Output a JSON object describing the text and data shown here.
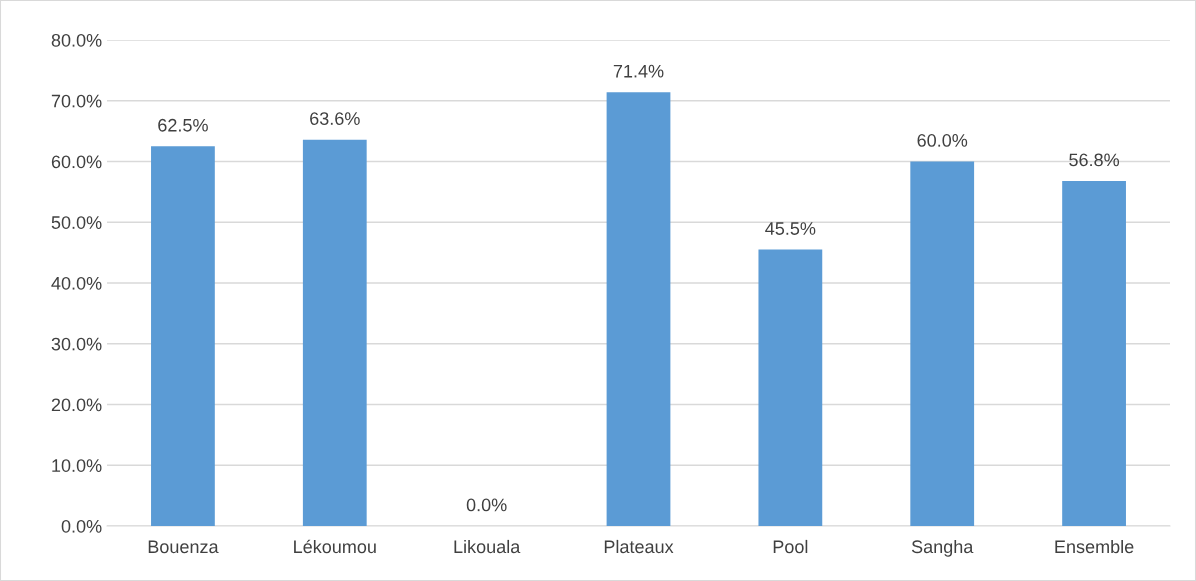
{
  "chart_data": {
    "type": "bar",
    "categories": [
      "Bouenza",
      "Lékoumou",
      "Likouala",
      "Plateaux",
      "Pool",
      "Sangha",
      "Ensemble"
    ],
    "values": [
      62.5,
      63.6,
      0.0,
      71.4,
      45.5,
      60.0,
      56.8
    ],
    "value_labels": [
      "62.5%",
      "63.6%",
      "0.0%",
      "71.4%",
      "45.5%",
      "60.0%",
      "56.8%"
    ],
    "color": "#5b9bd5",
    "ylim": [
      0,
      80
    ],
    "yticks": [
      {
        "value": 0,
        "label": "0.0%"
      },
      {
        "value": 10,
        "label": "10.0%"
      },
      {
        "value": 20,
        "label": "20.0%"
      },
      {
        "value": 30,
        "label": "30.0%"
      },
      {
        "value": 40,
        "label": "40.0%"
      },
      {
        "value": 50,
        "label": "50.0%"
      },
      {
        "value": 60,
        "label": "60.0%"
      },
      {
        "value": 70,
        "label": "70.0%"
      },
      {
        "value": 80,
        "label": "80.0%"
      }
    ],
    "grid": "y",
    "legend": false
  }
}
